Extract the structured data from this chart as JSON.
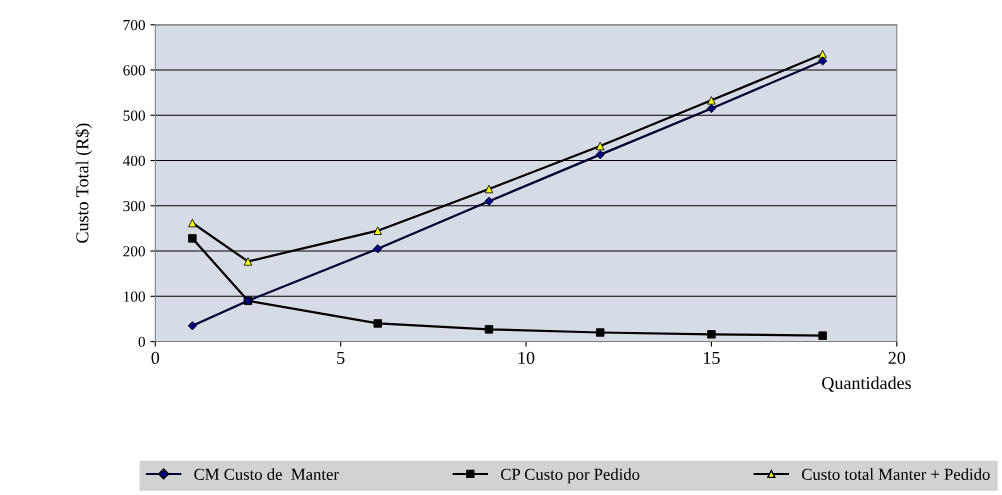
{
  "chart_data": {
    "type": "line",
    "xlabel": "Quantidades",
    "ylabel": "Custo Total (R$)",
    "xlim": [
      0,
      20
    ],
    "xticks": [
      0,
      5,
      10,
      15,
      20
    ],
    "ylim": [
      0,
      700
    ],
    "yticks": [
      0,
      100,
      200,
      300,
      400,
      500,
      600,
      700
    ],
    "grid": "y",
    "legend": "bottom",
    "series": [
      {
        "name": "CM Custo de  Manter",
        "color": "#000033",
        "marker": "diamond",
        "colors": [
          "#000080",
          "#000080",
          "#000080",
          "#000080",
          "#000080",
          "#000080",
          "#000080"
        ],
        "x": [
          1,
          2.5,
          6,
          9,
          12,
          15,
          18
        ],
        "values": [
          35,
          90,
          205,
          310,
          413,
          515,
          620
        ]
      },
      {
        "name": "CP Custo por Pedido",
        "color": "#000000",
        "marker": "square",
        "colors": [
          "#000000",
          "#000000",
          "#000000",
          "#000000",
          "#000000",
          "#000000",
          "#000000"
        ],
        "x": [
          1,
          2.5,
          6,
          9,
          12,
          15,
          18
        ],
        "values": [
          228,
          90,
          40,
          27,
          20,
          16,
          13
        ]
      },
      {
        "name": "Custo total Manter + Pedido",
        "color": "#000000",
        "marker": "triangle",
        "colors": [
          "#ffff00",
          "#ffff00",
          "#ffff00",
          "#ffff00",
          "#ffff00",
          "#ffff00",
          "#ffff00"
        ],
        "x": [
          1,
          2.5,
          6,
          9,
          12,
          15,
          18
        ],
        "values": [
          262,
          177,
          245,
          337,
          432,
          533,
          635
        ]
      }
    ]
  }
}
